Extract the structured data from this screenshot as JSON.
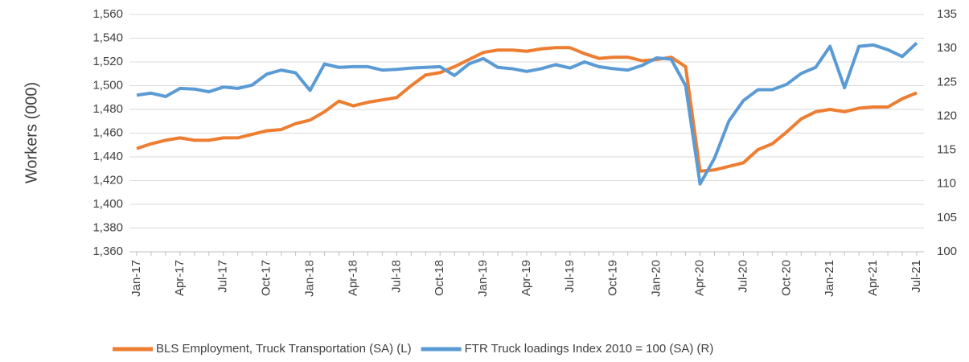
{
  "chart_data": {
    "type": "line",
    "y_label": "Workers (000)",
    "categories": [
      "Jan-17",
      null,
      null,
      "Apr-17",
      null,
      null,
      "Jul-17",
      null,
      null,
      "Oct-17",
      null,
      null,
      "Jan-18",
      null,
      null,
      "Apr-18",
      null,
      null,
      "Jul-18",
      null,
      null,
      "Oct-18",
      null,
      null,
      "Jan-19",
      null,
      null,
      "Apr-19",
      null,
      null,
      "Jul-19",
      null,
      null,
      "Oct-19",
      null,
      null,
      "Jan-20",
      null,
      null,
      "Apr-20",
      null,
      null,
      "Jul-20",
      null,
      null,
      "Oct-20",
      null,
      null,
      "Jan-21",
      null,
      null,
      "Apr-21",
      null,
      null,
      "Jul-21"
    ],
    "series": [
      {
        "name": "BLS Employment, Truck Transportation (SA) (L)",
        "color": "#ed7d31",
        "axis": "y",
        "values": [
          1447,
          1451,
          1454,
          1456,
          1454,
          1454,
          1456,
          1456,
          1459,
          1462,
          1463,
          1468,
          1471,
          1478,
          1487,
          1483,
          1486,
          1488,
          1490,
          1500,
          1509,
          1511,
          1516,
          1522,
          1528,
          1530,
          1530,
          1529,
          1531,
          1532,
          1532,
          1527,
          1523,
          1524,
          1524,
          1521,
          1522,
          1524,
          1516,
          1428,
          1429,
          1432,
          1435,
          1446,
          1451,
          1461,
          1472,
          1478,
          1480,
          1478,
          1481,
          1482,
          1482,
          1489,
          1494
        ]
      },
      {
        "name": "FTR Truck loadings Index 2010 = 100 (SA) (R)",
        "color": "#5b9bd5",
        "axis": "y2",
        "values": [
          123.1,
          123.4,
          122.9,
          124.1,
          124.0,
          123.6,
          124.3,
          124.1,
          124.6,
          126.2,
          126.8,
          126.4,
          123.8,
          127.7,
          127.2,
          127.3,
          127.3,
          126.8,
          126.9,
          127.1,
          127.2,
          127.3,
          126.0,
          127.7,
          128.5,
          127.2,
          127.0,
          126.6,
          127.0,
          127.6,
          127.1,
          128.0,
          127.3,
          127.0,
          126.8,
          127.5,
          128.6,
          128.4,
          124.5,
          110.0,
          113.8,
          119.3,
          122.3,
          123.9,
          123.9,
          124.7,
          126.3,
          127.2,
          130.3,
          124.2,
          130.3,
          130.5,
          129.8,
          128.8,
          130.8
        ]
      }
    ],
    "ylim": [
      1360,
      1560
    ],
    "yticks": [
      {
        "value": 1360,
        "label": "1,360"
      },
      {
        "value": 1380,
        "label": "1,380"
      },
      {
        "value": 1400,
        "label": "1,400"
      },
      {
        "value": 1420,
        "label": "1,420"
      },
      {
        "value": 1440,
        "label": "1,440"
      },
      {
        "value": 1460,
        "label": "1,460"
      },
      {
        "value": 1480,
        "label": "1,480"
      },
      {
        "value": 1500,
        "label": "1,500"
      },
      {
        "value": 1520,
        "label": "1,520"
      },
      {
        "value": 1540,
        "label": "1,540"
      },
      {
        "value": 1560,
        "label": "1,560"
      }
    ],
    "y2lim": [
      100,
      135
    ],
    "y2ticks": [
      100,
      105,
      110,
      115,
      120,
      125,
      130,
      135
    ],
    "grid": true,
    "legend": "bottom"
  }
}
